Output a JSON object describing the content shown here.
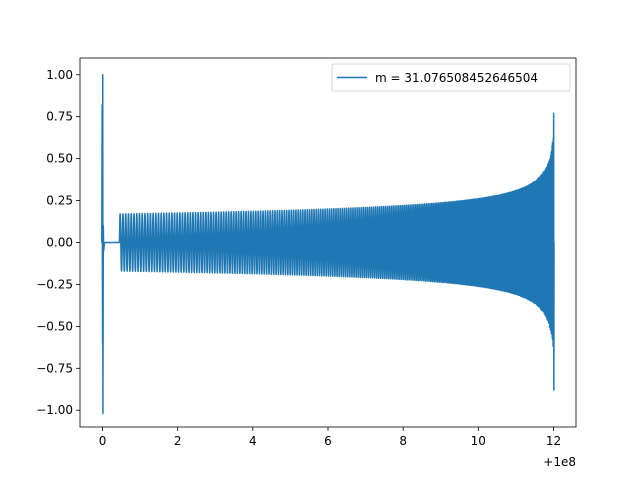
{
  "chart_data": {
    "type": "line",
    "title": "",
    "xlabel": "",
    "ylabel": "",
    "xlim": [
      -0.6,
      12.6
    ],
    "ylim": [
      -1.1,
      1.1
    ],
    "x_offset_label": "+1e8",
    "x_ticks": [
      0,
      2,
      4,
      6,
      8,
      10,
      12
    ],
    "x_tick_labels": [
      "0",
      "2",
      "4",
      "6",
      "8",
      "10",
      "12"
    ],
    "y_ticks": [
      1.0,
      0.75,
      0.5,
      0.25,
      0.0,
      -0.25,
      -0.5,
      -0.75,
      -1.0
    ],
    "y_tick_labels": [
      "1.00",
      "0.75",
      "0.50",
      "0.25",
      "0.00",
      "−0.25",
      "−0.50",
      "−0.75",
      "−1.00"
    ],
    "grid": false,
    "legend_position": "top-right",
    "series": [
      {
        "name": "m = 31.076508452646504",
        "color": "#1f77b4",
        "description_points": {
          "initial_spike_x": 0.0,
          "initial_spike_max": 1.0,
          "initial_spike_min": -1.02,
          "flat_start_x": 0.05,
          "flat_end_x": 0.45,
          "oscillation_start_x": 0.45,
          "oscillation_end_x": 12.0,
          "start_amplitude": 0.17,
          "end_max": 0.77,
          "end_min": -0.88
        }
      }
    ]
  }
}
